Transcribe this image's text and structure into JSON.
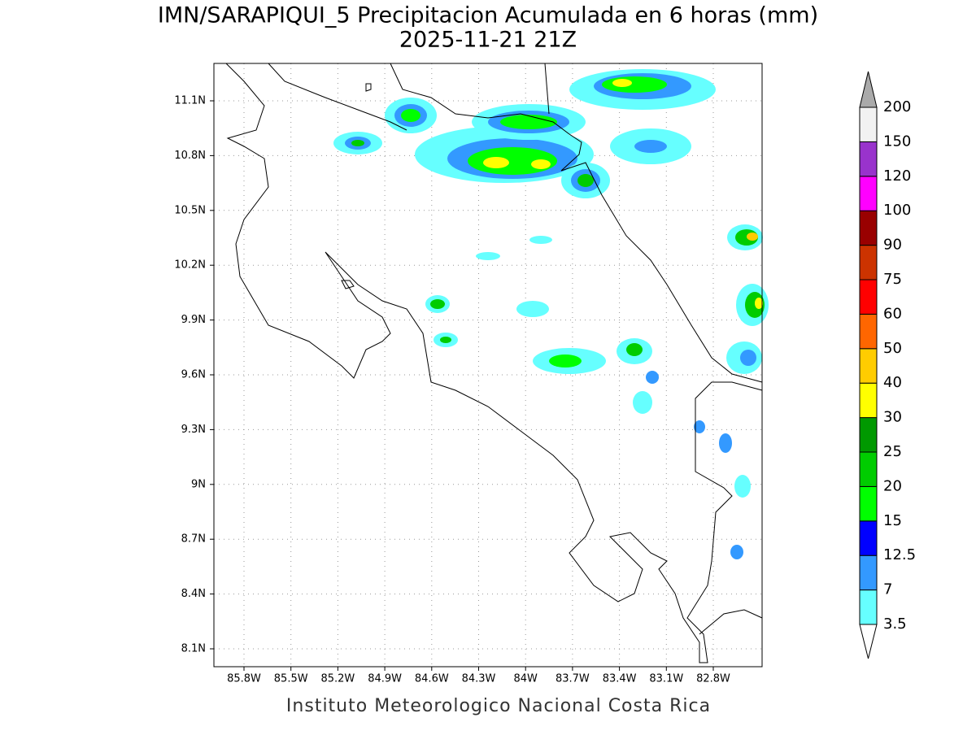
{
  "header": {
    "title": "IMN/SARAPIQUI_5 Precipitacion Acumulada en 6 horas (mm)",
    "subtitle": "2025-11-21 21Z"
  },
  "map": {
    "lon_labels": [
      "85.8W",
      "85.5W",
      "85.2W",
      "84.9W",
      "84.6W",
      "84.3W",
      "84W",
      "83.7W",
      "83.4W",
      "83.1W",
      "82.8W"
    ],
    "lat_labels": [
      "11.1N",
      "10.8N",
      "10.5N",
      "10.2N",
      "9.9N",
      "9.6N",
      "9.3N",
      "9N",
      "8.7N",
      "8.4N",
      "8.1N"
    ]
  },
  "colorbar": {
    "labels": [
      "3.5",
      "7",
      "12.5",
      "15",
      "20",
      "25",
      "30",
      "40",
      "50",
      "60",
      "75",
      "90",
      "100",
      "120",
      "150",
      "200"
    ],
    "colors": [
      "#66ffff",
      "#3399ff",
      "#0000ff",
      "#00ff00",
      "#00cc00",
      "#009900",
      "#ffff00",
      "#ffcc00",
      "#ff6600",
      "#ff0000",
      "#cc3300",
      "#990000",
      "#ff00ff",
      "#9933cc",
      "#f2f2f2"
    ],
    "over_color": "#aaaaaa",
    "under_color": "#ffffff"
  },
  "footer": "Instituto Meteorologico Nacional Costa Rica"
}
